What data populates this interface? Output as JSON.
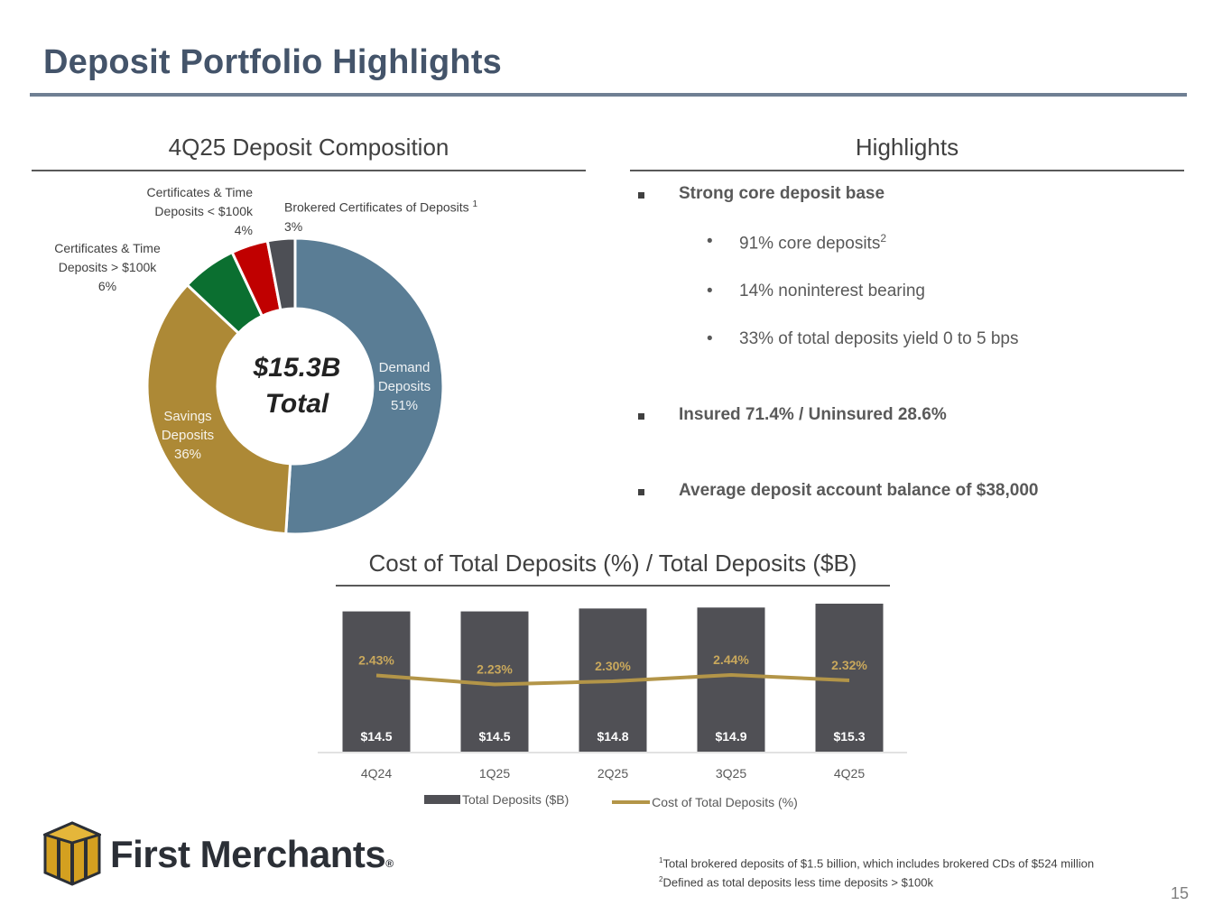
{
  "header": {
    "title": "Deposit Portfolio Highlights"
  },
  "composition": {
    "title": "4Q25 Deposit Composition",
    "center_line1": "$15.3B",
    "center_line2": "Total",
    "labels": {
      "demand": [
        "Demand",
        "Deposits",
        "51%"
      ],
      "savings": [
        "Savings",
        "Deposits",
        "36%"
      ],
      "cd_over": [
        "Certificates & Time",
        "Deposits > $100k",
        "6%"
      ],
      "cd_under": [
        "Certificates & Time",
        "Deposits < $100k",
        "4%"
      ],
      "brokered": [
        "Brokered Certificates of Deposits",
        "1",
        "3%"
      ]
    }
  },
  "highlights": {
    "title": "Highlights",
    "items": [
      {
        "text": "Strong core deposit base"
      },
      {
        "text": "91% core deposits",
        "sup": "2",
        "bullet": "•"
      },
      {
        "text": "14% noninterest bearing",
        "bullet": "•"
      },
      {
        "text": "33% of total deposits yield 0 to 5 bps",
        "bullet": "•"
      },
      {
        "text": "Insured 71.4% / Uninsured 28.6%"
      },
      {
        "text": "Average deposit account balance of $38,000"
      }
    ]
  },
  "cost_chart": {
    "title": "Cost of Total Deposits (%) / Total Deposits ($B)",
    "legend_bar": "Total Deposits ($B)",
    "legend_line": "Cost of Total Deposits (%)"
  },
  "chart_data": [
    {
      "type": "pie",
      "title": "4Q25 Deposit Composition",
      "categories": [
        "Demand Deposits",
        "Savings Deposits",
        "Certificates & Time Deposits > $100k",
        "Certificates & Time Deposits < $100k",
        "Brokered Certificates of Deposits"
      ],
      "values": [
        51,
        36,
        6,
        4,
        3
      ],
      "colors": [
        "#5a7d95",
        "#ad8936",
        "#0b6f30",
        "#c00000",
        "#4d4f55"
      ],
      "total_label": "$15.3B Total"
    },
    {
      "type": "bar",
      "title": "Cost of Total Deposits (%) / Total Deposits ($B)",
      "categories": [
        "4Q24",
        "1Q25",
        "2Q25",
        "3Q25",
        "4Q25"
      ],
      "series": [
        {
          "name": "Total Deposits ($B)",
          "type": "bar",
          "values": [
            14.5,
            14.5,
            14.8,
            14.9,
            15.3
          ],
          "labels": [
            "$14.5",
            "$14.5",
            "$14.8",
            "$14.9",
            "$15.3"
          ],
          "color": "#505055"
        },
        {
          "name": "Cost of Total Deposits (%)",
          "type": "line",
          "values": [
            2.43,
            2.23,
            2.3,
            2.44,
            2.32
          ],
          "labels": [
            "2.43%",
            "2.23%",
            "2.30%",
            "2.44%",
            "2.32%"
          ],
          "color": "#b39548"
        }
      ]
    }
  ],
  "footnotes": {
    "note1_sup": "1",
    "note1": "Total brokered deposits of $1.5 billion, which includes brokered CDs of $524 million",
    "note2_sup": "2",
    "note2": "Defined as total deposits less time deposits > $100k"
  },
  "logo": {
    "name": "First Merchants",
    "mark": "®"
  },
  "page_number": "15"
}
